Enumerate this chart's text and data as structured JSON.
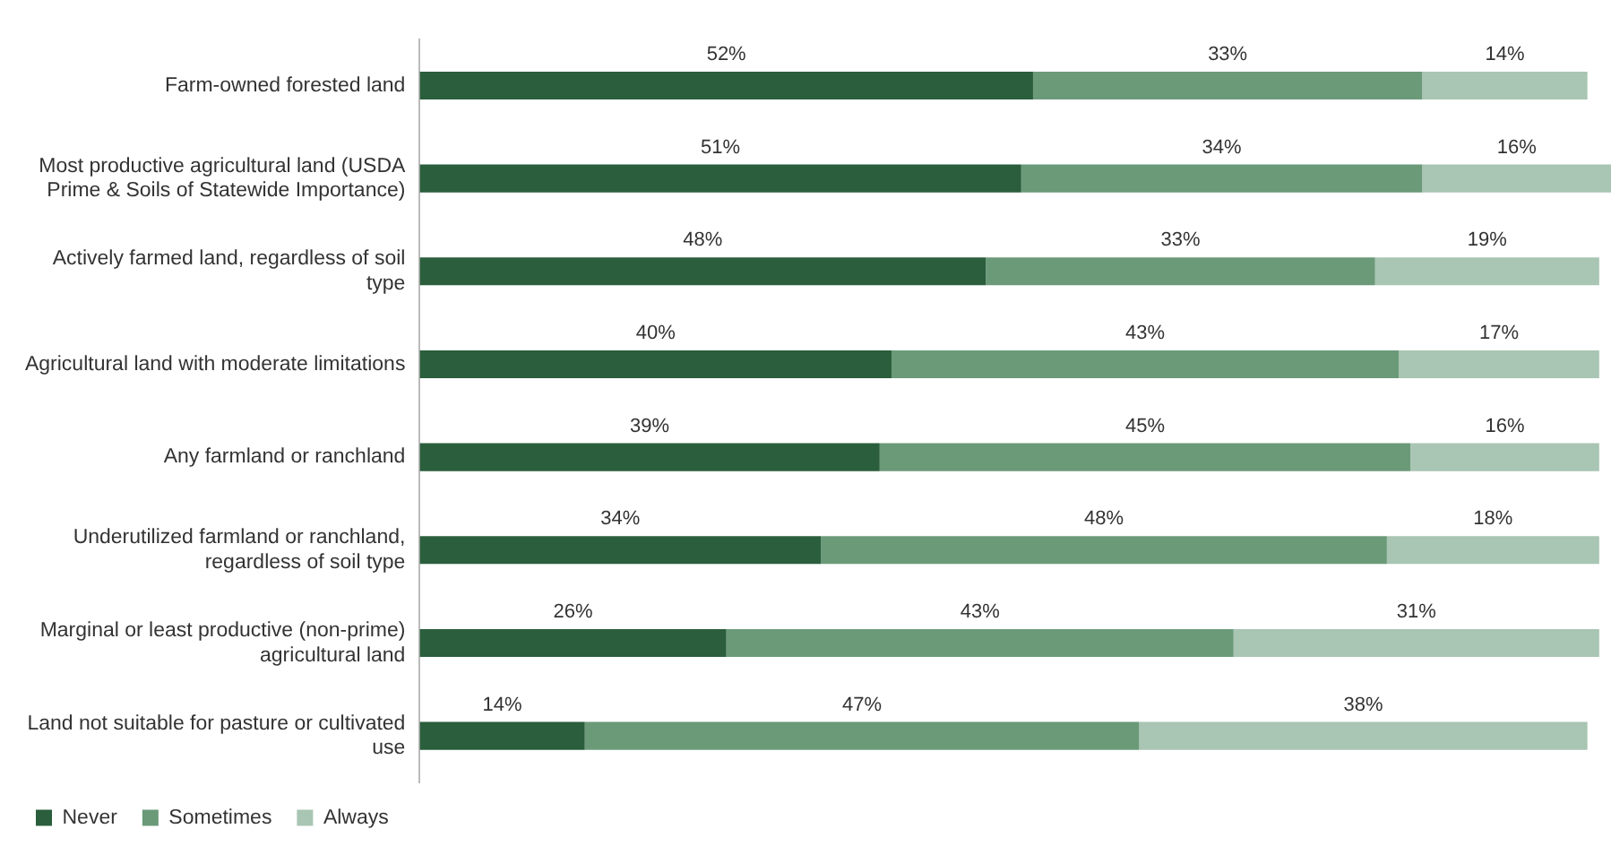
{
  "chart_data": {
    "type": "bar",
    "orientation": "horizontal",
    "stacked": true,
    "legend": "bottom left",
    "tick_labels": "y",
    "categories": [
      "Farm-owned forested land",
      "Most productive agricultural land (USDA Prime & Soils of Statewide Importance)",
      "Actively farmed land, regardless of soil type",
      "Agricultural land with moderate limitations",
      "Any farmland or ranchland",
      "Underutilized farmland or ranchland, regardless of soil type",
      "Marginal or least productive (non-prime) agricultural land",
      "Land not suitable for pasture or cultivated use"
    ],
    "series": [
      {
        "name": "Never",
        "color": "#2a5e3c",
        "values": [
          52,
          51,
          48,
          40,
          39,
          34,
          26,
          14
        ],
        "value_labels": [
          "52%",
          "51%",
          "48%",
          "40%",
          "39%",
          "34%",
          "26%",
          "14%"
        ]
      },
      {
        "name": "Sometimes",
        "color": "#6b9a79",
        "values": [
          33,
          34,
          33,
          43,
          45,
          48,
          43,
          47
        ],
        "value_labels": [
          "33%",
          "34%",
          "33%",
          "43%",
          "45%",
          "48%",
          "43%",
          "47%"
        ]
      },
      {
        "name": "Always",
        "color": "#a9c5b3",
        "values": [
          14,
          16,
          19,
          17,
          16,
          18,
          31,
          38
        ],
        "value_labels": [
          "14%",
          "16%",
          "19%",
          "17%",
          "16%",
          "18%",
          "31%",
          "38%"
        ]
      }
    ]
  }
}
